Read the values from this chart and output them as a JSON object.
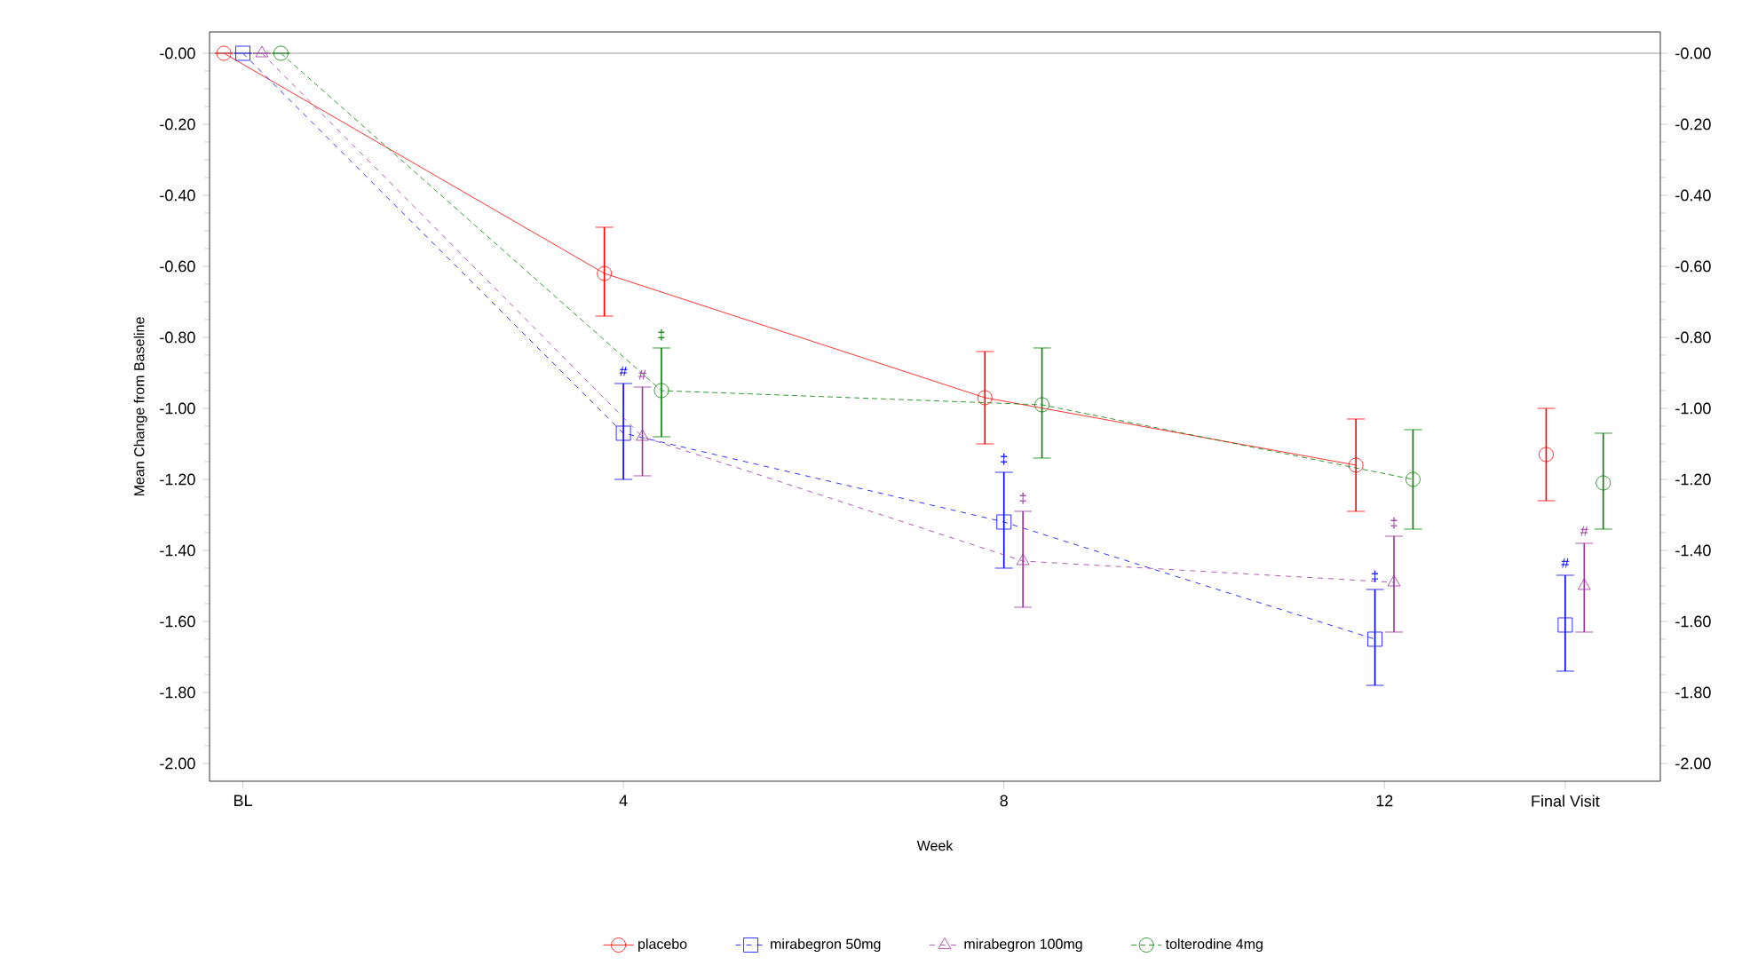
{
  "chart_data": {
    "type": "line",
    "xlabel": "Week",
    "ylabel": "Mean Change from Baseline",
    "xlim": [
      -0.35,
      14.9
    ],
    "ylim": [
      -2.05,
      0.06
    ],
    "xticks": [
      {
        "value": 0,
        "label": "BL"
      },
      4,
      8,
      12,
      {
        "value": 13.9,
        "label": "Final Visit"
      }
    ],
    "yticks": [
      {
        "value": 0,
        "label": "-0.00"
      },
      {
        "value": -0.2,
        "label": "-0.20"
      },
      {
        "value": -0.4,
        "label": "-0.40"
      },
      {
        "value": -0.6,
        "label": "-0.60"
      },
      {
        "value": -0.8,
        "label": "-0.80"
      },
      {
        "value": -1.0,
        "label": "-1.00"
      },
      {
        "value": -1.2,
        "label": "-1.20"
      },
      {
        "value": -1.4,
        "label": "-1.40"
      },
      {
        "value": -1.6,
        "label": "-1.60"
      },
      {
        "value": -1.8,
        "label": "-1.80"
      },
      {
        "value": -2.0,
        "label": "-2.00"
      }
    ],
    "y2lim": [
      -2.05,
      0.06
    ],
    "y2ticks": [
      {
        "value": 0,
        "label": "-0.00"
      },
      {
        "value": -0.2,
        "label": "-0.20"
      },
      {
        "value": -0.4,
        "label": "-0.40"
      },
      {
        "value": -0.6,
        "label": "-0.60"
      },
      {
        "value": -0.8,
        "label": "-0.80"
      },
      {
        "value": -1.0,
        "label": "-1.00"
      },
      {
        "value": -1.2,
        "label": "-1.20"
      },
      {
        "value": -1.4,
        "label": "-1.40"
      },
      {
        "value": -1.6,
        "label": "-1.60"
      },
      {
        "value": -1.8,
        "label": "-1.80"
      },
      {
        "value": -2.0,
        "label": "-2.00"
      }
    ],
    "grid": false,
    "legend": "bottom",
    "ref_lines": [
      {
        "axis": "y",
        "value": 0,
        "color": "#808080"
      }
    ],
    "series": [
      {
        "name": "placebo",
        "color": "#ff0000",
        "marker": "circle",
        "line_style": "solid",
        "x": [
          -0.2,
          3.8,
          7.8,
          11.7,
          12.8,
          13.7
        ],
        "values": [
          0,
          -0.62,
          -0.97,
          -1.16,
          null,
          -1.13
        ],
        "errors": [
          null,
          [
            -0.74,
            -0.49
          ],
          [
            -1.1,
            -0.84
          ],
          [
            -1.29,
            -1.03
          ],
          null,
          [
            -1.26,
            -1.0
          ]
        ]
      },
      {
        "name": "mirabegron 50mg",
        "color": "#0000ff",
        "marker": "square",
        "line_style": "dashed",
        "x": [
          0,
          4,
          8,
          11.9,
          12.9,
          13.9
        ],
        "values": [
          0,
          -1.07,
          -1.32,
          -1.65,
          null,
          -1.61
        ],
        "errors": [
          null,
          [
            -1.2,
            -0.93
          ],
          [
            -1.45,
            -1.18
          ],
          [
            -1.78,
            -1.51
          ],
          null,
          [
            -1.74,
            -1.47
          ]
        ]
      },
      {
        "name": "mirabegron 100mg",
        "color": "#993399",
        "marker": "triangle",
        "line_style": "dashed",
        "x": [
          0.2,
          4.2,
          8.2,
          12.1,
          13.1,
          14.1
        ],
        "values": [
          0,
          -1.08,
          -1.43,
          -1.49,
          null,
          -1.5
        ],
        "errors": [
          null,
          [
            -1.19,
            -0.94
          ],
          [
            -1.56,
            -1.29
          ],
          [
            -1.63,
            -1.36
          ],
          null,
          [
            -1.63,
            -1.38
          ]
        ]
      },
      {
        "name": "tolterodine 4mg",
        "color": "#008000",
        "marker": "circle",
        "line_style": "dotted",
        "x": [
          0.4,
          4.4,
          8.4,
          12.3,
          13.3,
          14.3
        ],
        "values": [
          0,
          -0.95,
          -0.99,
          -1.2,
          null,
          -1.21
        ],
        "errors": [
          null,
          [
            -1.08,
            -0.83
          ],
          [
            -1.14,
            -0.83
          ],
          [
            -1.34,
            -1.06
          ],
          null,
          [
            -1.34,
            -1.07
          ]
        ]
      }
    ],
    "annotations": [
      {
        "text": "#",
        "x": 4,
        "y": -0.93
      },
      {
        "text": "#",
        "x": 4.2,
        "y": -0.94
      },
      {
        "text": "‡",
        "x": 4.4,
        "y": -0.83
      },
      {
        "text": "‡",
        "x": 8,
        "y": -1.18
      },
      {
        "text": "‡",
        "x": 8.2,
        "y": -1.29
      },
      {
        "text": "‡",
        "x": 11.9,
        "y": -1.51
      },
      {
        "text": "‡",
        "x": 12.1,
        "y": -1.36
      },
      {
        "text": "#",
        "x": 13.9,
        "y": -1.47
      },
      {
        "text": "#",
        "x": 14.1,
        "y": -1.38
      }
    ]
  }
}
